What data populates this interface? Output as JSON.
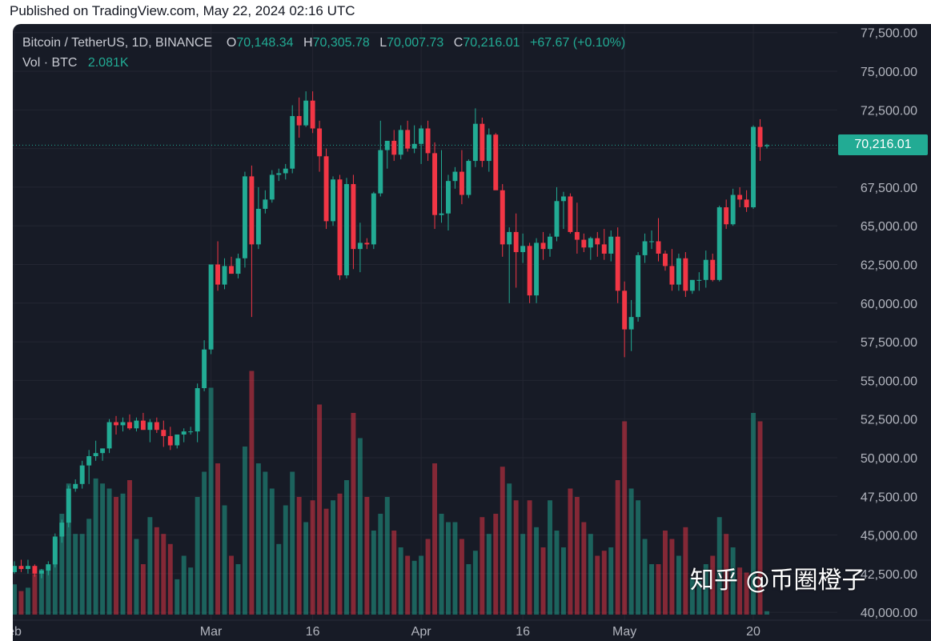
{
  "header": {
    "published": "Published on TradingView.com, May 22, 2024 02:16 UTC"
  },
  "legend": {
    "symbol": "Bitcoin / TetherUS, 1D, BINANCE",
    "open_label": "O",
    "open": "70,148.34",
    "high_label": "H",
    "high": "70,305.78",
    "low_label": "L",
    "low": "70,007.73",
    "close_label": "C",
    "close": "70,216.01",
    "change": "+67.67 (+0.10%)",
    "vol_label": "Vol · BTC",
    "vol_value": "2.081K"
  },
  "last_price_label": "70,216.01",
  "watermark": "知乎 @币圈橙子",
  "colors": {
    "up": "#22ab94",
    "down": "#f23645",
    "background": "#171b26",
    "grid": "#232632",
    "axis_text": "#b2b5be"
  },
  "chart_data": {
    "type": "candlestick",
    "title": "Bitcoin / TetherUS, 1D, BINANCE",
    "interval": "1D",
    "y_ticks": [
      "77,500.00",
      "75,000.00",
      "72,500.00",
      "70,000.00",
      "67,500.00",
      "65,000.00",
      "62,500.00",
      "60,000.00",
      "57,500.00",
      "55,000.00",
      "52,500.00",
      "50,000.00",
      "47,500.00",
      "45,000.00",
      "42,500.00",
      "40,000.00"
    ],
    "ylim": [
      39800,
      77900
    ],
    "x_ticks": [
      {
        "label": "eb",
        "index": 0
      },
      {
        "label": "Mar",
        "index": 29
      },
      {
        "label": "16",
        "index": 44
      },
      {
        "label": "Apr",
        "index": 60
      },
      {
        "label": "16",
        "index": 75
      },
      {
        "label": "May",
        "index": 90
      },
      {
        "label": "20",
        "index": 109
      }
    ],
    "last_price": 70216.01,
    "candles": [
      {
        "o": 42600,
        "h": 43300,
        "l": 42500,
        "c": 43000,
        "v": 18
      },
      {
        "o": 43000,
        "h": 43400,
        "l": 42600,
        "c": 42800,
        "v": 14
      },
      {
        "o": 42800,
        "h": 43400,
        "l": 42500,
        "c": 43000,
        "v": 16
      },
      {
        "o": 43000,
        "h": 43100,
        "l": 42300,
        "c": 42500,
        "v": 24
      },
      {
        "o": 42500,
        "h": 42800,
        "l": 42200,
        "c": 42700,
        "v": 27
      },
      {
        "o": 42700,
        "h": 43300,
        "l": 42400,
        "c": 43100,
        "v": 30
      },
      {
        "o": 43100,
        "h": 45100,
        "l": 42900,
        "c": 44900,
        "v": 45
      },
      {
        "o": 44900,
        "h": 46000,
        "l": 44500,
        "c": 45800,
        "v": 60
      },
      {
        "o": 45800,
        "h": 48200,
        "l": 45500,
        "c": 48000,
        "v": 78
      },
      {
        "o": 48000,
        "h": 48600,
        "l": 47800,
        "c": 48300,
        "v": 48
      },
      {
        "o": 48300,
        "h": 49800,
        "l": 48000,
        "c": 49500,
        "v": 48
      },
      {
        "o": 49500,
        "h": 50500,
        "l": 48300,
        "c": 50100,
        "v": 57
      },
      {
        "o": 50100,
        "h": 51100,
        "l": 49800,
        "c": 50300,
        "v": 81
      },
      {
        "o": 50300,
        "h": 50600,
        "l": 49800,
        "c": 50600,
        "v": 78
      },
      {
        "o": 50600,
        "h": 52500,
        "l": 50300,
        "c": 52300,
        "v": 75
      },
      {
        "o": 52300,
        "h": 52700,
        "l": 51500,
        "c": 52100,
        "v": 70
      },
      {
        "o": 52100,
        "h": 52600,
        "l": 51700,
        "c": 52300,
        "v": 72
      },
      {
        "o": 52300,
        "h": 52800,
        "l": 51800,
        "c": 51900,
        "v": 80
      },
      {
        "o": 51900,
        "h": 52600,
        "l": 51700,
        "c": 52400,
        "v": 45
      },
      {
        "o": 52400,
        "h": 52900,
        "l": 51800,
        "c": 51800,
        "v": 30
      },
      {
        "o": 51800,
        "h": 52500,
        "l": 51000,
        "c": 52300,
        "v": 58
      },
      {
        "o": 52300,
        "h": 52600,
        "l": 51600,
        "c": 51800,
        "v": 52
      },
      {
        "o": 51800,
        "h": 52400,
        "l": 50700,
        "c": 51400,
        "v": 48
      },
      {
        "o": 51400,
        "h": 52000,
        "l": 50500,
        "c": 50800,
        "v": 42
      },
      {
        "o": 50800,
        "h": 51500,
        "l": 50600,
        "c": 51500,
        "v": 21
      },
      {
        "o": 51500,
        "h": 51900,
        "l": 51000,
        "c": 51700,
        "v": 35
      },
      {
        "o": 51700,
        "h": 52000,
        "l": 51500,
        "c": 51700,
        "v": 28
      },
      {
        "o": 51700,
        "h": 54800,
        "l": 51000,
        "c": 54500,
        "v": 70
      },
      {
        "o": 54500,
        "h": 57600,
        "l": 54300,
        "c": 57000,
        "v": 85
      },
      {
        "o": 57000,
        "h": 62500,
        "l": 56700,
        "c": 62500,
        "v": 135
      },
      {
        "o": 62500,
        "h": 64000,
        "l": 60800,
        "c": 61200,
        "v": 90
      },
      {
        "o": 61200,
        "h": 62900,
        "l": 60900,
        "c": 62400,
        "v": 65
      },
      {
        "o": 62400,
        "h": 63000,
        "l": 61900,
        "c": 61900,
        "v": 35
      },
      {
        "o": 61900,
        "h": 63200,
        "l": 61600,
        "c": 62900,
        "v": 30
      },
      {
        "o": 62900,
        "h": 68500,
        "l": 62300,
        "c": 68200,
        "v": 100
      },
      {
        "o": 68200,
        "h": 68900,
        "l": 59100,
        "c": 63800,
        "v": 145
      },
      {
        "o": 63800,
        "h": 67500,
        "l": 63500,
        "c": 66100,
        "v": 90
      },
      {
        "o": 66100,
        "h": 67300,
        "l": 65800,
        "c": 66700,
        "v": 85
      },
      {
        "o": 66700,
        "h": 68600,
        "l": 66500,
        "c": 68300,
        "v": 75
      },
      {
        "o": 68300,
        "h": 68700,
        "l": 67900,
        "c": 68400,
        "v": 42
      },
      {
        "o": 68400,
        "h": 69000,
        "l": 68000,
        "c": 68700,
        "v": 65
      },
      {
        "o": 68700,
        "h": 72800,
        "l": 68400,
        "c": 72100,
        "v": 85
      },
      {
        "o": 72100,
        "h": 73300,
        "l": 70700,
        "c": 71500,
        "v": 70
      },
      {
        "o": 71500,
        "h": 73700,
        "l": 71400,
        "c": 73100,
        "v": 55
      },
      {
        "o": 73100,
        "h": 73700,
        "l": 71000,
        "c": 71300,
        "v": 68
      },
      {
        "o": 71300,
        "h": 71800,
        "l": 68500,
        "c": 69500,
        "v": 125
      },
      {
        "o": 69500,
        "h": 70000,
        "l": 64800,
        "c": 65300,
        "v": 63
      },
      {
        "o": 65300,
        "h": 68200,
        "l": 65000,
        "c": 68000,
        "v": 68
      },
      {
        "o": 68000,
        "h": 68300,
        "l": 61500,
        "c": 61800,
        "v": 72
      },
      {
        "o": 61800,
        "h": 68100,
        "l": 61600,
        "c": 67700,
        "v": 80
      },
      {
        "o": 67700,
        "h": 68300,
        "l": 62200,
        "c": 63500,
        "v": 120
      },
      {
        "o": 63500,
        "h": 65200,
        "l": 62000,
        "c": 63900,
        "v": 105
      },
      {
        "o": 63900,
        "h": 64200,
        "l": 63500,
        "c": 63800,
        "v": 70
      },
      {
        "o": 63800,
        "h": 67200,
        "l": 63500,
        "c": 67100,
        "v": 50
      },
      {
        "o": 67100,
        "h": 71800,
        "l": 66900,
        "c": 69900,
        "v": 60
      },
      {
        "o": 69900,
        "h": 70400,
        "l": 68700,
        "c": 70500,
        "v": 70
      },
      {
        "o": 70500,
        "h": 71200,
        "l": 69200,
        "c": 69600,
        "v": 50
      },
      {
        "o": 69600,
        "h": 71500,
        "l": 69300,
        "c": 71200,
        "v": 40
      },
      {
        "o": 71200,
        "h": 71800,
        "l": 69800,
        "c": 70000,
        "v": 35
      },
      {
        "o": 70000,
        "h": 71500,
        "l": 69700,
        "c": 70300,
        "v": 32
      },
      {
        "o": 70300,
        "h": 71500,
        "l": 69000,
        "c": 71300,
        "v": 35
      },
      {
        "o": 71300,
        "h": 71800,
        "l": 69200,
        "c": 69700,
        "v": 45
      },
      {
        "o": 69700,
        "h": 70400,
        "l": 64800,
        "c": 65700,
        "v": 90
      },
      {
        "o": 65700,
        "h": 69900,
        "l": 65200,
        "c": 65800,
        "v": 60
      },
      {
        "o": 65800,
        "h": 68300,
        "l": 64700,
        "c": 67900,
        "v": 55
      },
      {
        "o": 67900,
        "h": 68800,
        "l": 67400,
        "c": 68500,
        "v": 55
      },
      {
        "o": 68500,
        "h": 69900,
        "l": 66400,
        "c": 67000,
        "v": 45
      },
      {
        "o": 67000,
        "h": 69300,
        "l": 66800,
        "c": 69200,
        "v": 30
      },
      {
        "o": 69200,
        "h": 72600,
        "l": 68800,
        "c": 71600,
        "v": 38
      },
      {
        "o": 71600,
        "h": 72000,
        "l": 68800,
        "c": 69200,
        "v": 58
      },
      {
        "o": 69200,
        "h": 71300,
        "l": 68500,
        "c": 70900,
        "v": 48
      },
      {
        "o": 70900,
        "h": 71000,
        "l": 67400,
        "c": 67300,
        "v": 60
      },
      {
        "o": 67300,
        "h": 67700,
        "l": 63000,
        "c": 63800,
        "v": 88
      },
      {
        "o": 63800,
        "h": 64900,
        "l": 60000,
        "c": 64600,
        "v": 78
      },
      {
        "o": 64600,
        "h": 65800,
        "l": 61000,
        "c": 63300,
        "v": 68
      },
      {
        "o": 63300,
        "h": 64500,
        "l": 62600,
        "c": 63700,
        "v": 48
      },
      {
        "o": 63700,
        "h": 63900,
        "l": 60000,
        "c": 60500,
        "v": 68
      },
      {
        "o": 60500,
        "h": 64200,
        "l": 60000,
        "c": 63900,
        "v": 52
      },
      {
        "o": 63900,
        "h": 64600,
        "l": 62800,
        "c": 63500,
        "v": 40
      },
      {
        "o": 63500,
        "h": 64500,
        "l": 63000,
        "c": 64300,
        "v": 68
      },
      {
        "o": 64300,
        "h": 67500,
        "l": 64000,
        "c": 66600,
        "v": 50
      },
      {
        "o": 66600,
        "h": 67200,
        "l": 64800,
        "c": 66900,
        "v": 40
      },
      {
        "o": 66900,
        "h": 67100,
        "l": 64500,
        "c": 64600,
        "v": 75
      },
      {
        "o": 64600,
        "h": 66500,
        "l": 63200,
        "c": 64100,
        "v": 70
      },
      {
        "o": 64100,
        "h": 64500,
        "l": 63300,
        "c": 63600,
        "v": 55
      },
      {
        "o": 63600,
        "h": 64300,
        "l": 62800,
        "c": 64200,
        "v": 48
      },
      {
        "o": 64200,
        "h": 64600,
        "l": 63000,
        "c": 63800,
        "v": 35
      },
      {
        "o": 63800,
        "h": 64800,
        "l": 62800,
        "c": 63200,
        "v": 38
      },
      {
        "o": 63200,
        "h": 64700,
        "l": 62700,
        "c": 64300,
        "v": 40
      },
      {
        "o": 64300,
        "h": 64900,
        "l": 60000,
        "c": 60800,
        "v": 80
      },
      {
        "o": 60800,
        "h": 61400,
        "l": 56500,
        "c": 58300,
        "v": 115
      },
      {
        "o": 58300,
        "h": 60200,
        "l": 56900,
        "c": 59100,
        "v": 75
      },
      {
        "o": 59100,
        "h": 63300,
        "l": 58800,
        "c": 63100,
        "v": 68
      },
      {
        "o": 63100,
        "h": 64500,
        "l": 62600,
        "c": 64000,
        "v": 45
      },
      {
        "o": 64000,
        "h": 64700,
        "l": 63500,
        "c": 64000,
        "v": 30
      },
      {
        "o": 64000,
        "h": 65500,
        "l": 62700,
        "c": 63200,
        "v": 30
      },
      {
        "o": 63200,
        "h": 63400,
        "l": 62100,
        "c": 62400,
        "v": 50
      },
      {
        "o": 62400,
        "h": 63500,
        "l": 60800,
        "c": 61200,
        "v": 45
      },
      {
        "o": 61200,
        "h": 63200,
        "l": 60800,
        "c": 62900,
        "v": 35
      },
      {
        "o": 62900,
        "h": 63300,
        "l": 60400,
        "c": 60800,
        "v": 52
      },
      {
        "o": 60800,
        "h": 61500,
        "l": 60600,
        "c": 61500,
        "v": 22
      },
      {
        "o": 61500,
        "h": 62000,
        "l": 60800,
        "c": 61500,
        "v": 20
      },
      {
        "o": 61500,
        "h": 63400,
        "l": 61000,
        "c": 62800,
        "v": 30
      },
      {
        "o": 62800,
        "h": 63200,
        "l": 61400,
        "c": 61500,
        "v": 35
      },
      {
        "o": 61500,
        "h": 66300,
        "l": 61400,
        "c": 66200,
        "v": 58
      },
      {
        "o": 66200,
        "h": 66700,
        "l": 64800,
        "c": 65100,
        "v": 48
      },
      {
        "o": 65100,
        "h": 67400,
        "l": 65000,
        "c": 67000,
        "v": 40
      },
      {
        "o": 67000,
        "h": 67500,
        "l": 66200,
        "c": 66700,
        "v": 28
      },
      {
        "o": 66700,
        "h": 67300,
        "l": 65900,
        "c": 66200,
        "v": 25
      },
      {
        "o": 66200,
        "h": 71500,
        "l": 66100,
        "c": 71400,
        "v": 120
      },
      {
        "o": 71400,
        "h": 71900,
        "l": 69200,
        "c": 70100,
        "v": 115
      },
      {
        "o": 70148,
        "h": 70306,
        "l": 70008,
        "c": 70216,
        "v": 2
      }
    ]
  }
}
